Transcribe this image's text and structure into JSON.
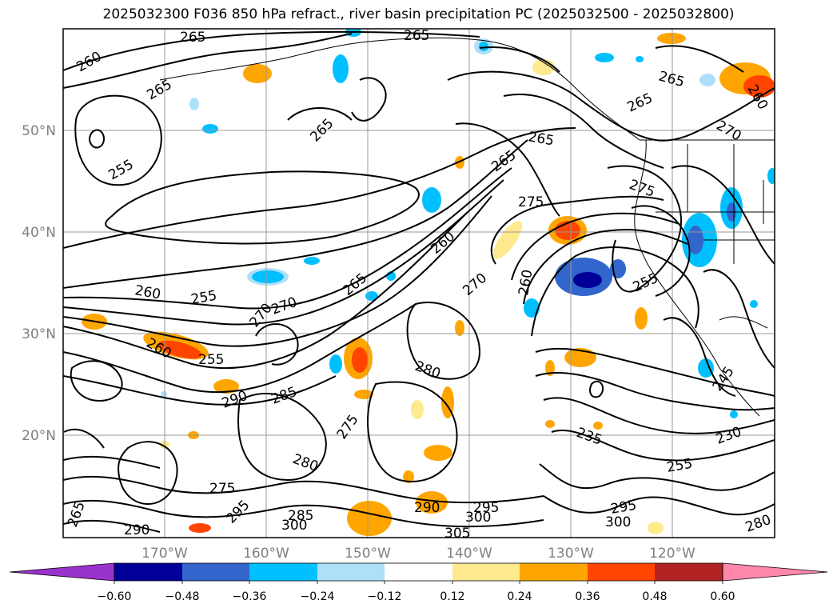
{
  "title": "2025032300 F036 850 hPa refract., river basin precipitation PC (2025032500 - 2025032800)",
  "map": {
    "lat_labels": [
      "50°N",
      "40°N",
      "30°N",
      "20°N"
    ],
    "lon_labels": [
      "170°W",
      "160°W",
      "150°W",
      "140°W",
      "130°W",
      "120°W"
    ],
    "contour_labels": [
      "265",
      "265",
      "260",
      "265",
      "265",
      "255",
      "265",
      "265",
      "265",
      "265",
      "275",
      "275",
      "260",
      "255",
      "260",
      "255",
      "270",
      "270",
      "265",
      "270",
      "260",
      "255",
      "260",
      "280",
      "290",
      "285",
      "275",
      "280",
      "275",
      "295",
      "285",
      "290",
      "295",
      "300",
      "305",
      "300",
      "300",
      "295",
      "235",
      "230",
      "255",
      "245",
      "280",
      "265",
      "290",
      "270",
      "260"
    ]
  },
  "colorbar": {
    "ticks": [
      "−0.60",
      "−0.48",
      "−0.36",
      "−0.24",
      "−0.12",
      "0.12",
      "0.24",
      "0.36",
      "0.48",
      "0.60"
    ],
    "colors": [
      "#9933cc",
      "#000099",
      "#3366cc",
      "#00bfff",
      "#aee0fa",
      "#ffffff",
      "#fee98f",
      "#ffa500",
      "#ff4500",
      "#b22222",
      "#ff88aa"
    ]
  }
}
